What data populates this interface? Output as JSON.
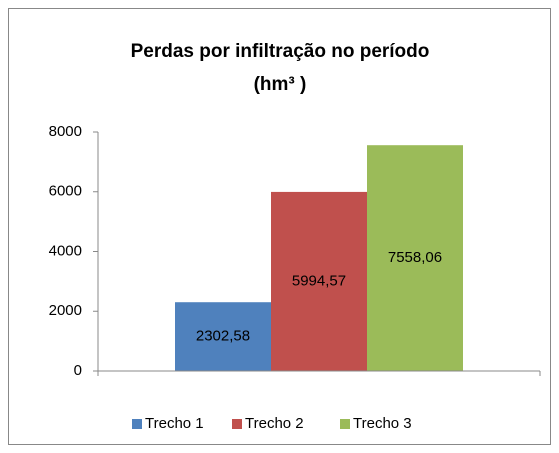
{
  "chart_data": {
    "type": "bar",
    "title": [
      "Perdas por infiltração no período",
      "(hm³ )"
    ],
    "series": [
      {
        "name": "Trecho 1",
        "color": "#4f81bd",
        "values": [
          2302.58
        ],
        "value_labels": [
          "2302,58"
        ]
      },
      {
        "name": "Trecho 2",
        "color": "#c0504d",
        "values": [
          5994.57
        ],
        "value_labels": [
          "5994,57"
        ]
      },
      {
        "name": "Trecho 3",
        "color": "#9bbb59",
        "values": [
          7558.06
        ],
        "value_labels": [
          "7558,06"
        ]
      }
    ],
    "ylim": [
      0,
      8000
    ],
    "yticks": [
      0,
      2000,
      4000,
      6000,
      8000
    ],
    "grid": false,
    "legend": "bottom"
  }
}
